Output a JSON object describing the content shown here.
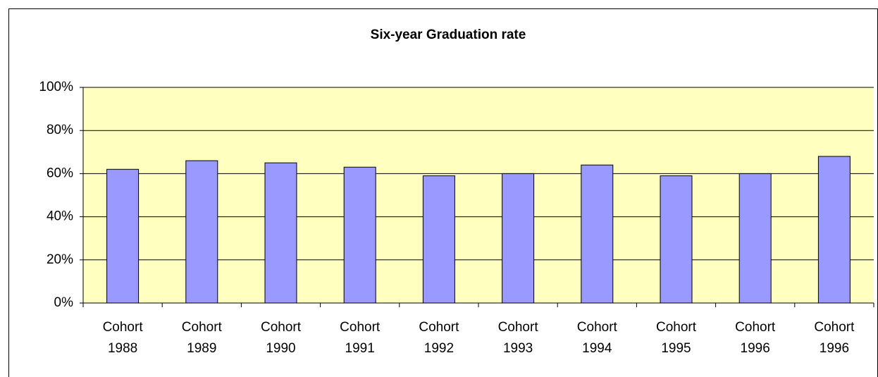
{
  "chart_data": {
    "type": "bar",
    "title": "Six-year Graduation rate",
    "categories": [
      "Cohort 1988",
      "Cohort 1989",
      "Cohort 1990",
      "Cohort 1991",
      "Cohort 1992",
      "Cohort 1993",
      "Cohort 1994",
      "Cohort 1995",
      "Cohort 1996",
      "Cohort 1996"
    ],
    "values": [
      62,
      66,
      65,
      63,
      59,
      60,
      64,
      59,
      60,
      68
    ],
    "color": "#9999ff",
    "plot_background": "#ffffc0",
    "ylim": [
      0,
      100
    ],
    "yticks": [
      {
        "value": 0,
        "label": "0%"
      },
      {
        "value": 20,
        "label": "20%"
      },
      {
        "value": 40,
        "label": "40%"
      },
      {
        "value": 60,
        "label": "60%"
      },
      {
        "value": 80,
        "label": "80%"
      },
      {
        "value": 100,
        "label": "100%"
      }
    ],
    "grid": true
  }
}
